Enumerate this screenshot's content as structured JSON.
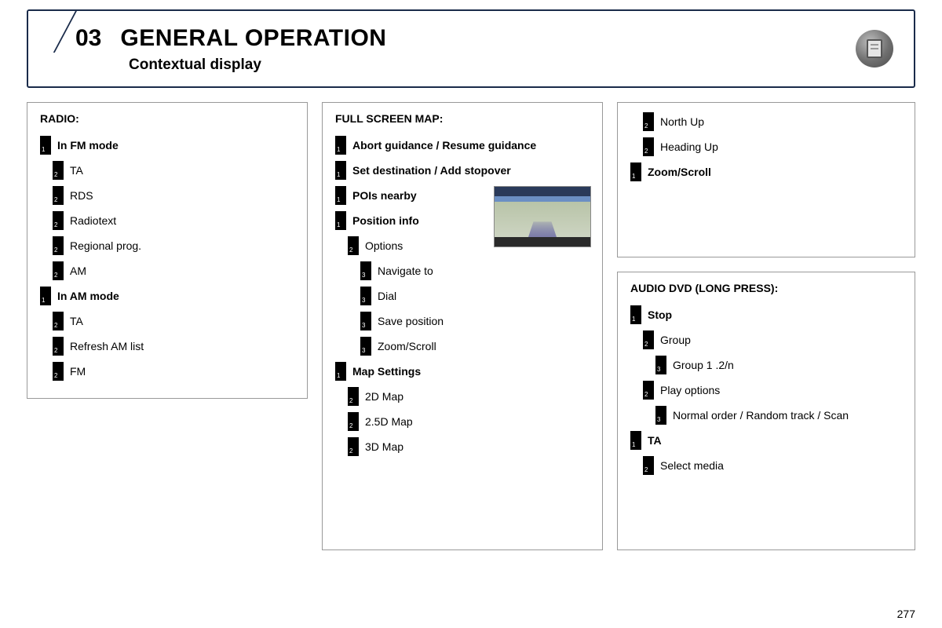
{
  "header": {
    "number": "03",
    "title": "GENERAL OPERATION",
    "subtitle": "Contextual display"
  },
  "page_number": "277",
  "panels": {
    "radio": {
      "title": "RADIO:",
      "items": [
        {
          "level": 1,
          "num": "1",
          "label": "In FM mode",
          "bold": true
        },
        {
          "level": 2,
          "num": "2",
          "label": "TA"
        },
        {
          "level": 2,
          "num": "2",
          "label": "RDS"
        },
        {
          "level": 2,
          "num": "2",
          "label": "Radiotext"
        },
        {
          "level": 2,
          "num": "2",
          "label": "Regional prog."
        },
        {
          "level": 2,
          "num": "2",
          "label": "AM"
        },
        {
          "level": 1,
          "num": "1",
          "label": "In AM mode",
          "bold": true
        },
        {
          "level": 2,
          "num": "2",
          "label": "TA"
        },
        {
          "level": 2,
          "num": "2",
          "label": "Refresh AM list"
        },
        {
          "level": 2,
          "num": "2",
          "label": "FM"
        }
      ]
    },
    "map": {
      "title": "FULL SCREEN MAP:",
      "items": [
        {
          "level": 1,
          "num": "1",
          "label": "Abort guidance / Resume guidance",
          "bold": true
        },
        {
          "level": 1,
          "num": "1",
          "label": "Set destination / Add stopover",
          "bold": true
        },
        {
          "level": 1,
          "num": "1",
          "label": "POIs nearby",
          "bold": true
        },
        {
          "level": 1,
          "num": "1",
          "label": "Position info",
          "bold": true
        },
        {
          "level": 2,
          "num": "2",
          "label": "Options"
        },
        {
          "level": 3,
          "num": "3",
          "label": "Navigate to"
        },
        {
          "level": 3,
          "num": "3",
          "label": "Dial"
        },
        {
          "level": 3,
          "num": "3",
          "label": "Save position"
        },
        {
          "level": 3,
          "num": "3",
          "label": "Zoom/Scroll"
        },
        {
          "level": 1,
          "num": "1",
          "label": "Map Settings",
          "bold": true
        },
        {
          "level": 2,
          "num": "2",
          "label": "2D Map"
        },
        {
          "level": 2,
          "num": "2",
          "label": "2.5D Map"
        },
        {
          "level": 2,
          "num": "2",
          "label": "3D Map"
        }
      ]
    },
    "map_cont": {
      "title": "",
      "items": [
        {
          "level": 2,
          "num": "2",
          "label": "North Up"
        },
        {
          "level": 2,
          "num": "2",
          "label": "Heading Up"
        },
        {
          "level": 1,
          "num": "1",
          "label": "Zoom/Scroll",
          "bold": true
        }
      ]
    },
    "dvd": {
      "title": "AUDIO DVD (LONG PRESS):",
      "items": [
        {
          "level": 1,
          "num": "1",
          "label": "Stop",
          "bold": true
        },
        {
          "level": 2,
          "num": "2",
          "label": "Group"
        },
        {
          "level": 3,
          "num": "3",
          "label": "Group 1 .2/n"
        },
        {
          "level": 2,
          "num": "2",
          "label": "Play options"
        },
        {
          "level": 3,
          "num": "3",
          "label": "Normal order / Random track / Scan"
        },
        {
          "level": 1,
          "num": "1",
          "label": "TA",
          "bold": true
        },
        {
          "level": 2,
          "num": "2",
          "label": "Select media"
        }
      ]
    }
  }
}
